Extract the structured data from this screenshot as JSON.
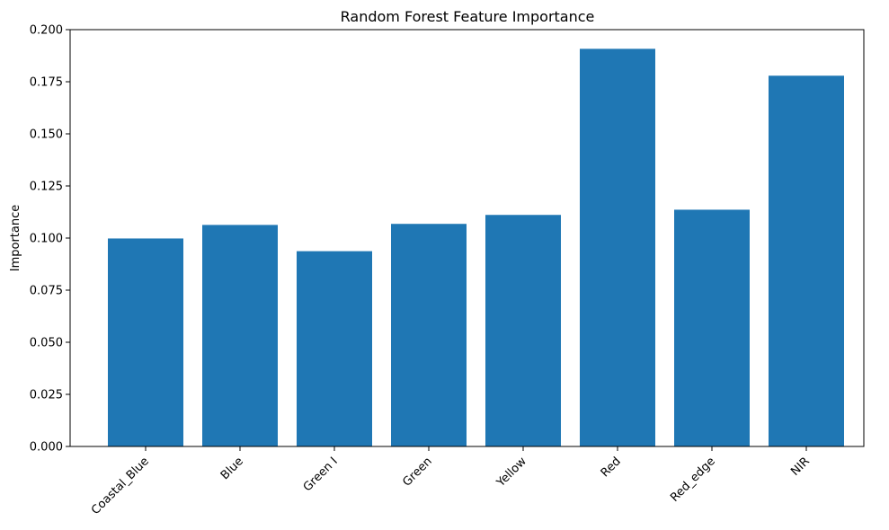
{
  "chart_data": {
    "type": "bar",
    "title": "Random Forest Feature Importance",
    "xlabel": "",
    "ylabel": "Importance",
    "categories": [
      "Coastal_Blue",
      "Blue",
      "Green I",
      "Green",
      "Yellow",
      "Red",
      "Red_edge",
      "NIR"
    ],
    "values": [
      0.0998,
      0.1063,
      0.0937,
      0.1068,
      0.1111,
      0.1908,
      0.1136,
      0.1779
    ],
    "ylim": [
      0,
      0.2
    ],
    "yticks": [
      0.0,
      0.025,
      0.05,
      0.075,
      0.1,
      0.125,
      0.15,
      0.175,
      0.2
    ],
    "ytick_labels": [
      "0.000",
      "0.025",
      "0.050",
      "0.075",
      "0.100",
      "0.125",
      "0.150",
      "0.175",
      "0.200"
    ],
    "xtick_rotation_deg": 45,
    "grid": false,
    "legend": "none",
    "colors": {
      "bar": "#1f77b4",
      "axis": "#000000",
      "background": "#ffffff"
    }
  }
}
